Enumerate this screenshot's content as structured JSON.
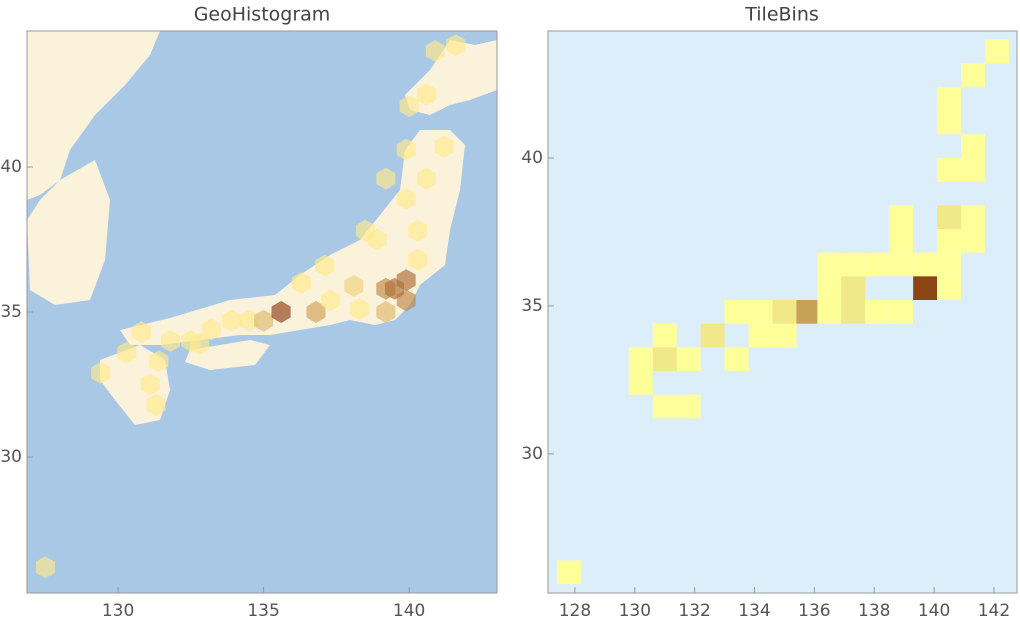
{
  "chart_data": [
    {
      "type": "geohistogram",
      "title": "GeoHistogram",
      "x": [
        127.5,
        129.4,
        130.3,
        130.8,
        131.3,
        131.1,
        131.8,
        132.5,
        133.2,
        133.9,
        134.5,
        135.0,
        135.6,
        136.8,
        136.3,
        137.3,
        138.1,
        139.2,
        139.9,
        139.9,
        139.2,
        139.5,
        138.3,
        140.3,
        140.3,
        138.9,
        139.9,
        140.6,
        141.2,
        139.9,
        140.0,
        140.6,
        140.9,
        141.6,
        139.2,
        138.5,
        137.1,
        132.8,
        131.4
      ],
      "y": [
        26.2,
        32.9,
        33.6,
        34.3,
        31.8,
        32.5,
        34.0,
        34.0,
        34.4,
        34.7,
        34.7,
        34.7,
        35.0,
        35.0,
        36.0,
        35.4,
        35.9,
        35.8,
        36.1,
        35.4,
        35.0,
        35.8,
        35.1,
        36.8,
        37.8,
        37.5,
        38.9,
        39.6,
        40.7,
        40.6,
        42.1,
        42.5,
        44.0,
        44.2,
        39.6,
        37.8,
        36.6,
        33.9,
        33.3
      ],
      "values": [
        1,
        1,
        1,
        1,
        1,
        1,
        1,
        1,
        1,
        1,
        1,
        3,
        8,
        4,
        1,
        1,
        2,
        5,
        6,
        5,
        3,
        6,
        1,
        1,
        1,
        1,
        1,
        1,
        1,
        1,
        1,
        1,
        1,
        1,
        1,
        1,
        1,
        1,
        1
      ],
      "colors": [
        "#ffe98a",
        "#8b3a12"
      ],
      "xlim": [
        126.87,
        143.02
      ],
      "ylim": [
        25.31,
        44.69
      ],
      "xticks": [
        130,
        135,
        140
      ],
      "yticks": [
        30,
        35,
        40
      ]
    },
    {
      "type": "tilebins",
      "title": "TileBins",
      "x": [
        142.1,
        141.3,
        140.5,
        140.5,
        141.3,
        140.5,
        141.3,
        138.9,
        140.5,
        141.3,
        140.5,
        141.3,
        138.9,
        136.5,
        137.3,
        138.1,
        138.9,
        139.7,
        140.5,
        136.5,
        137.3,
        139.7,
        140.5,
        133.4,
        134.2,
        135.0,
        135.8,
        136.5,
        137.3,
        138.1,
        138.9,
        132.6,
        134.2,
        135.0,
        131.0,
        130.2,
        131.0,
        131.8,
        133.4,
        130.2,
        131.0,
        131.8,
        127.8
      ],
      "y": [
        43.6,
        42.8,
        42.0,
        41.2,
        40.4,
        39.6,
        39.6,
        38.0,
        38.0,
        38.0,
        37.2,
        37.2,
        37.2,
        36.4,
        36.4,
        36.4,
        36.4,
        36.4,
        36.4,
        35.6,
        35.6,
        35.6,
        35.6,
        34.8,
        34.8,
        34.8,
        34.8,
        34.8,
        34.8,
        34.8,
        34.8,
        34.0,
        34.0,
        34.0,
        34.0,
        33.2,
        33.2,
        33.2,
        33.2,
        32.4,
        31.6,
        31.6,
        26.0
      ],
      "values": [
        1,
        1,
        1,
        1,
        1,
        1,
        1,
        1,
        2,
        1,
        1,
        1,
        1,
        1,
        1,
        1,
        1,
        1,
        1,
        1,
        2,
        9,
        1,
        1,
        1,
        2,
        5,
        1,
        2,
        1,
        1,
        2,
        1,
        1,
        1,
        1,
        2,
        1,
        1,
        1,
        1,
        1,
        1
      ],
      "bin_size": 0.8,
      "colors": [
        "#ffff99",
        "#8b4513"
      ],
      "xlim": [
        127.1,
        142.77
      ],
      "ylim": [
        25.3,
        44.29
      ],
      "xticks": [
        128,
        130,
        132,
        134,
        136,
        138,
        140,
        142
      ],
      "yticks": [
        30,
        35,
        40
      ]
    }
  ]
}
